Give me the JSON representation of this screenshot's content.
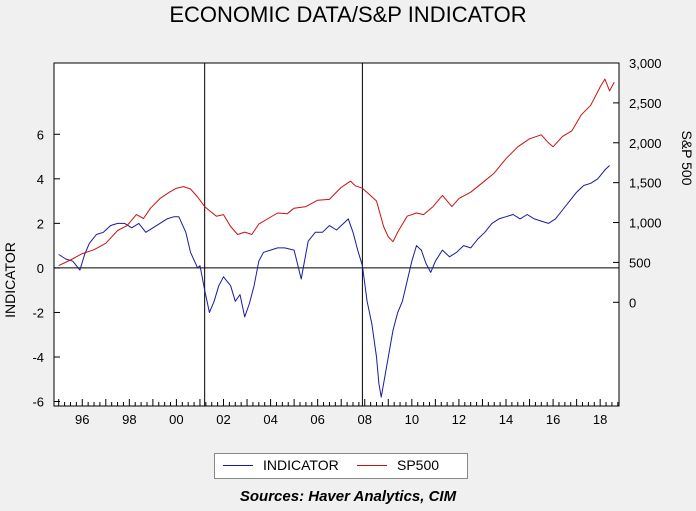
{
  "chart_data": {
    "type": "line",
    "title": "ECONOMIC DATA/S&P INDICATOR",
    "ylabel_left": "INDICATOR",
    "ylabel_right": "S&P 500",
    "source": "Sources:  Haver Analytics, CIM",
    "x_ticks": [
      "96",
      "98",
      "00",
      "02",
      "04",
      "06",
      "08",
      "10",
      "12",
      "14",
      "16",
      "18"
    ],
    "x_tick_years": [
      1996,
      1998,
      2000,
      2002,
      2004,
      2006,
      2008,
      2010,
      2012,
      2014,
      2016,
      2018
    ],
    "xlim": [
      1994.8,
      2018.8
    ],
    "left_axis": {
      "ylim": [
        -6.2,
        9.2
      ],
      "ticks": [
        -6,
        -4,
        -2,
        0,
        2,
        4,
        6
      ]
    },
    "right_axis": {
      "ylim": [
        -1300,
        3000
      ],
      "ticks": [
        0,
        500,
        1000,
        1500,
        2000,
        2500,
        3000
      ],
      "tick_labels": [
        "0",
        "500",
        "1,000",
        "1,500",
        "2,000",
        "2,500",
        "3,000"
      ]
    },
    "zero_line": 0,
    "vertical_markers": [
      2001.2,
      2007.9
    ],
    "grid": false,
    "legend_position": "bottom",
    "series": [
      {
        "name": "INDICATOR",
        "axis": "left",
        "color": "#1a1aa0",
        "x": [
          1995.0,
          1995.3,
          1995.6,
          1995.9,
          1996.1,
          1996.3,
          1996.6,
          1996.9,
          1997.2,
          1997.5,
          1997.8,
          1998.1,
          1998.4,
          1998.7,
          1999.0,
          1999.3,
          1999.6,
          1999.9,
          2000.1,
          2000.4,
          2000.6,
          2000.9,
          2001.0,
          2001.2,
          2001.4,
          2001.6,
          2001.8,
          2002.0,
          2002.3,
          2002.5,
          2002.7,
          2002.9,
          2003.1,
          2003.3,
          2003.5,
          2003.7,
          2004.0,
          2004.3,
          2004.6,
          2005.0,
          2005.3,
          2005.6,
          2005.9,
          2006.2,
          2006.5,
          2006.8,
          2007.1,
          2007.3,
          2007.5,
          2007.7,
          2007.9,
          2008.1,
          2008.3,
          2008.5,
          2008.6,
          2008.7,
          2008.8,
          2009.0,
          2009.2,
          2009.4,
          2009.6,
          2009.8,
          2010.0,
          2010.2,
          2010.4,
          2010.6,
          2010.8,
          2011.0,
          2011.3,
          2011.6,
          2011.9,
          2012.2,
          2012.5,
          2012.8,
          2013.1,
          2013.4,
          2013.7,
          2014.0,
          2014.3,
          2014.6,
          2014.9,
          2015.2,
          2015.5,
          2015.8,
          2016.1,
          2016.4,
          2016.7,
          2017.0,
          2017.3,
          2017.6,
          2017.9,
          2018.2,
          2018.4
        ],
        "values": [
          0.6,
          0.4,
          0.3,
          -0.1,
          0.6,
          1.1,
          1.5,
          1.6,
          1.9,
          2.0,
          2.0,
          1.8,
          2.0,
          1.6,
          1.8,
          2.0,
          2.2,
          2.3,
          2.3,
          1.6,
          0.7,
          0.0,
          0.1,
          -1.0,
          -2.0,
          -1.5,
          -0.8,
          -0.4,
          -0.8,
          -1.5,
          -1.2,
          -2.2,
          -1.6,
          -0.8,
          0.3,
          0.7,
          0.8,
          0.9,
          0.9,
          0.8,
          -0.5,
          1.2,
          1.6,
          1.6,
          1.9,
          1.7,
          2.0,
          2.2,
          1.6,
          0.8,
          0.1,
          -1.5,
          -2.5,
          -4.0,
          -5.2,
          -5.8,
          -5.2,
          -4.0,
          -2.8,
          -2.0,
          -1.5,
          -0.6,
          0.3,
          1.0,
          0.8,
          0.2,
          -0.2,
          0.3,
          0.8,
          0.5,
          0.7,
          1.0,
          0.9,
          1.3,
          1.6,
          2.0,
          2.2,
          2.3,
          2.4,
          2.2,
          2.4,
          2.2,
          2.1,
          2.0,
          2.2,
          2.6,
          3.0,
          3.4,
          3.7,
          3.8,
          4.0,
          4.4,
          4.6
        ]
      },
      {
        "name": "SP500",
        "axis": "right",
        "color": "#cc1111",
        "x": [
          1995.0,
          1995.5,
          1996.0,
          1996.5,
          1997.0,
          1997.5,
          1997.9,
          1998.3,
          1998.6,
          1998.9,
          1999.3,
          1999.7,
          2000.0,
          2000.3,
          2000.6,
          2000.9,
          2001.2,
          2001.4,
          2001.7,
          2002.0,
          2002.3,
          2002.6,
          2002.9,
          2003.2,
          2003.5,
          2003.9,
          2004.3,
          2004.7,
          2005.0,
          2005.5,
          2006.0,
          2006.5,
          2007.0,
          2007.4,
          2007.6,
          2007.9,
          2008.2,
          2008.5,
          2008.8,
          2009.0,
          2009.2,
          2009.4,
          2009.8,
          2010.2,
          2010.5,
          2010.9,
          2011.3,
          2011.7,
          2012.0,
          2012.5,
          2013.0,
          2013.5,
          2014.0,
          2014.5,
          2015.0,
          2015.5,
          2015.8,
          2016.0,
          2016.4,
          2016.8,
          2017.2,
          2017.6,
          2018.0,
          2018.2,
          2018.4,
          2018.6
        ],
        "values": [
          460,
          530,
          610,
          660,
          740,
          900,
          960,
          1100,
          1050,
          1180,
          1300,
          1380,
          1430,
          1450,
          1420,
          1320,
          1200,
          1150,
          1080,
          1100,
          950,
          850,
          880,
          850,
          980,
          1050,
          1120,
          1110,
          1180,
          1200,
          1280,
          1290,
          1440,
          1520,
          1460,
          1430,
          1350,
          1270,
          950,
          820,
          760,
          880,
          1080,
          1120,
          1100,
          1200,
          1340,
          1200,
          1300,
          1380,
          1500,
          1620,
          1800,
          1950,
          2050,
          2100,
          2000,
          1950,
          2080,
          2150,
          2350,
          2470,
          2700,
          2800,
          2650,
          2760
        ]
      }
    ]
  },
  "legend": {
    "indicator_label": "INDICATOR",
    "sp500_label": "SP500"
  }
}
